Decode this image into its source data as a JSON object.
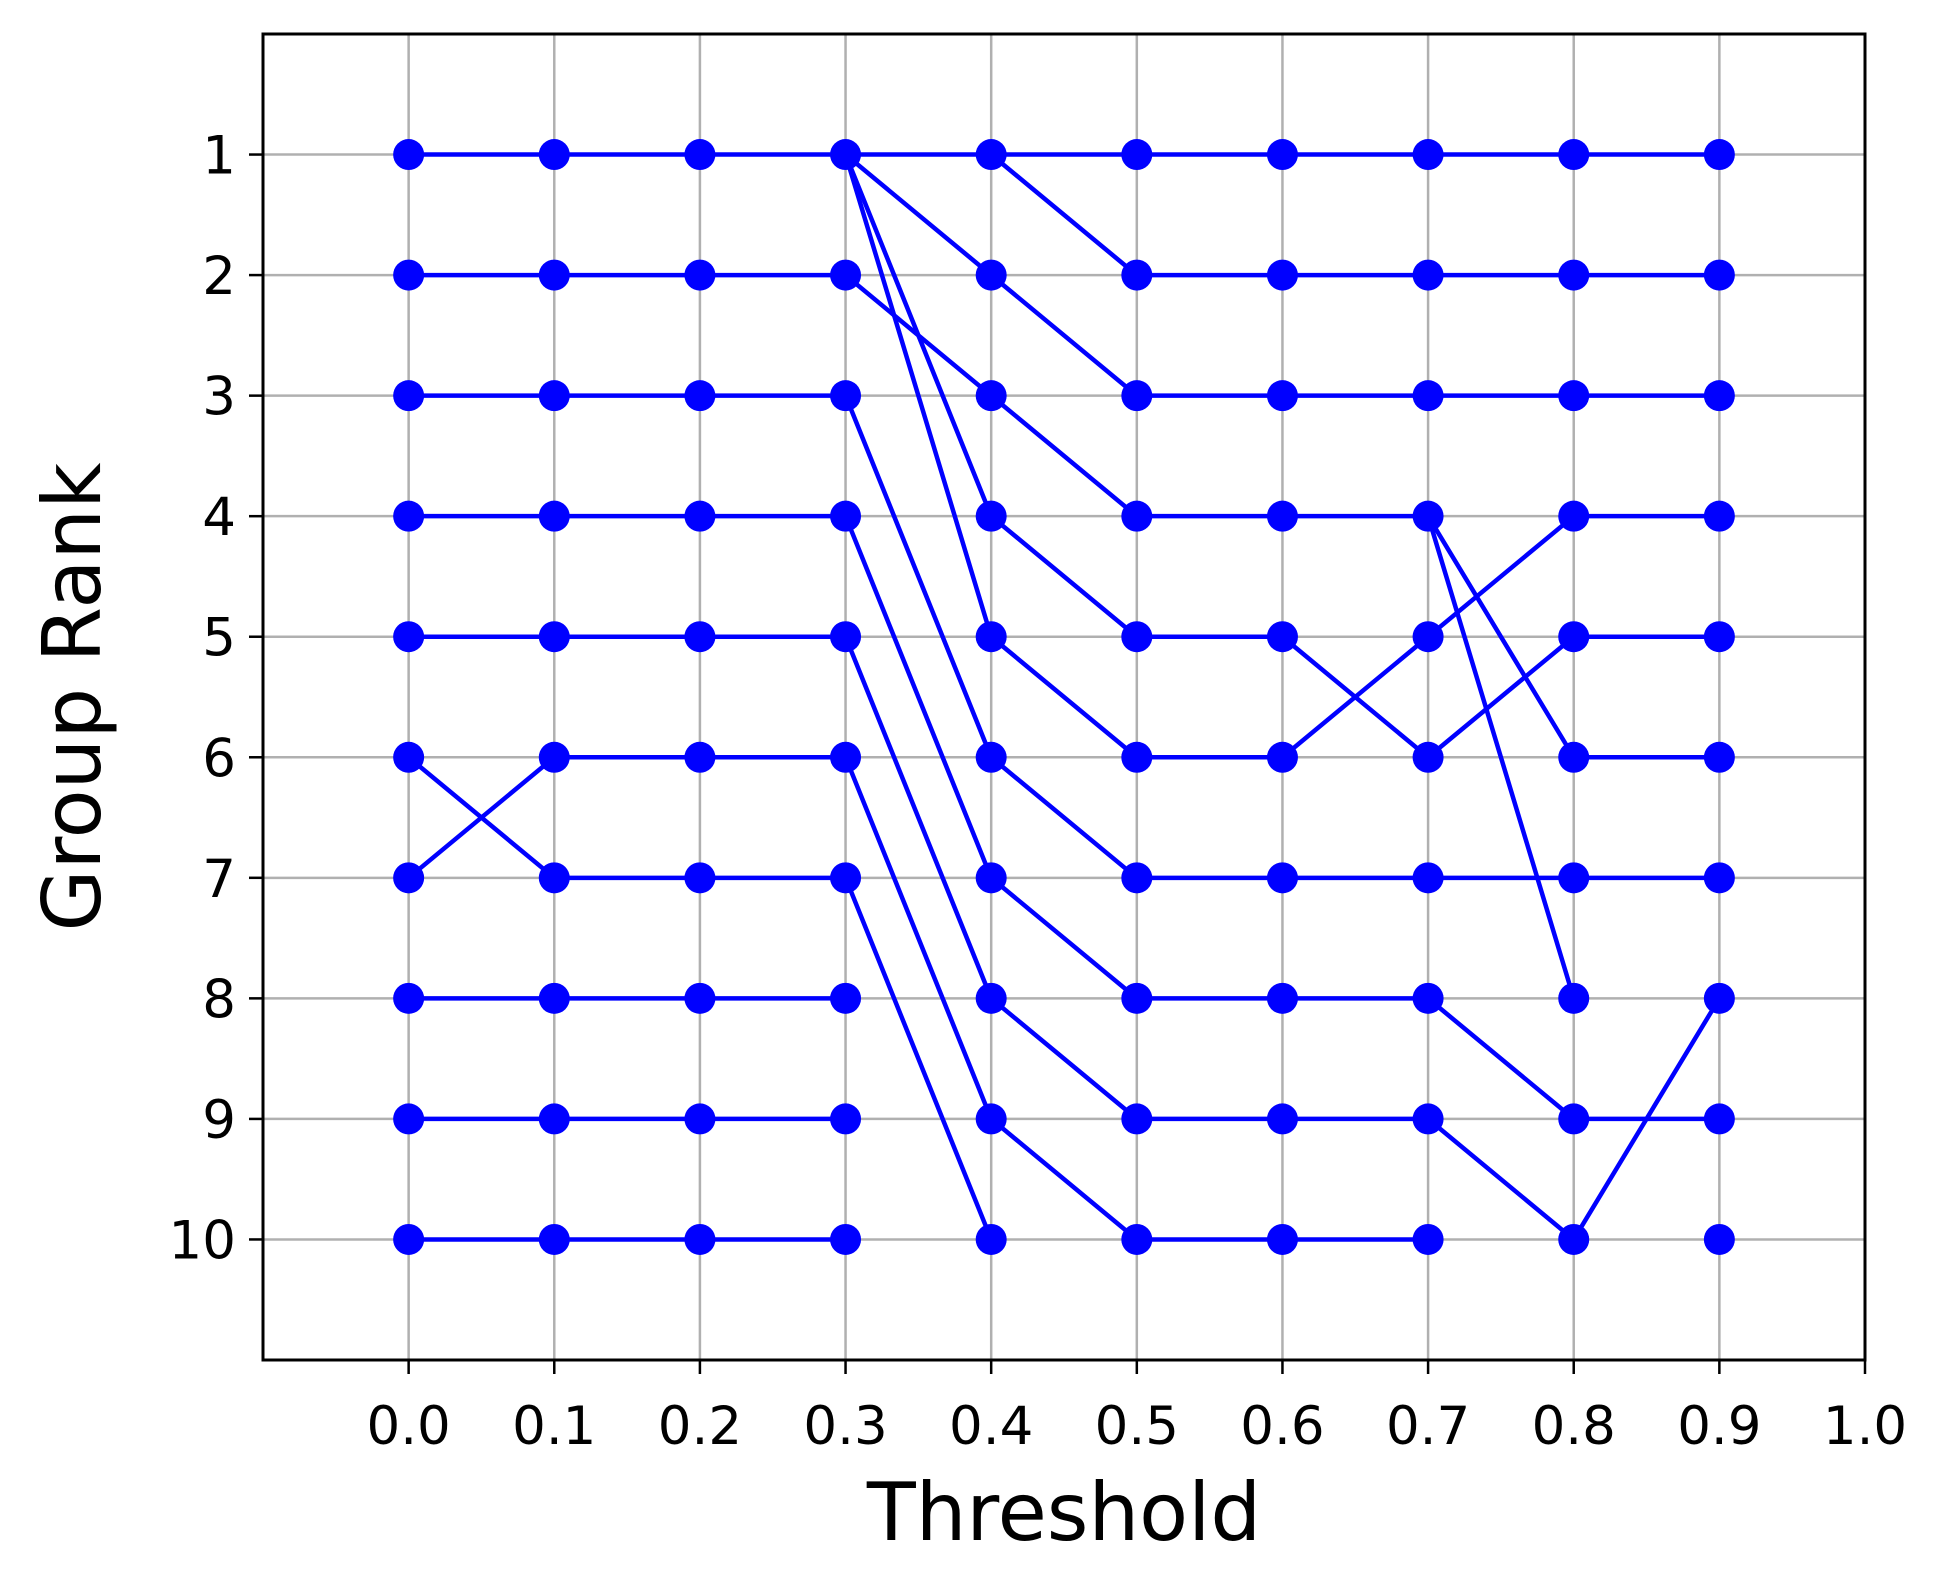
{
  "chart_data": {
    "type": "line",
    "title": "",
    "xlabel": "Threshold",
    "ylabel": "Group Rank",
    "xlim": [
      -0.1,
      1.0
    ],
    "ylim": [
      11,
      0
    ],
    "y_inverted": true,
    "x_ticks": [
      0.0,
      0.1,
      0.2,
      0.3,
      0.4,
      0.5,
      0.6,
      0.7,
      0.8,
      0.9,
      1.0
    ],
    "x_tick_labels": [
      "0.0",
      "0.1",
      "0.2",
      "0.3",
      "0.4",
      "0.5",
      "0.6",
      "0.7",
      "0.8",
      "0.9",
      "1.0"
    ],
    "y_ticks": [
      1,
      2,
      3,
      4,
      5,
      6,
      7,
      8,
      9,
      10
    ],
    "y_tick_labels": [
      "1",
      "2",
      "3",
      "4",
      "5",
      "6",
      "7",
      "8",
      "9",
      "10"
    ],
    "grid": true,
    "legend": "none",
    "color": "#0000ff",
    "grid_color": "#b0b0b0",
    "points": [
      {
        "x": 0.0,
        "ranks": [
          1,
          2,
          3,
          4,
          5,
          6,
          7,
          8,
          9,
          10
        ]
      },
      {
        "x": 0.1,
        "ranks": [
          1,
          2,
          3,
          4,
          5,
          6,
          7,
          8,
          9,
          10
        ]
      },
      {
        "x": 0.2,
        "ranks": [
          1,
          2,
          3,
          4,
          5,
          6,
          7,
          8,
          9,
          10
        ]
      },
      {
        "x": 0.3,
        "ranks": [
          1,
          2,
          3,
          4,
          5,
          6,
          7,
          8,
          9,
          10
        ]
      },
      {
        "x": 0.4,
        "ranks": [
          1,
          2,
          3,
          4,
          5,
          6,
          7,
          8,
          9,
          10
        ]
      },
      {
        "x": 0.5,
        "ranks": [
          1,
          2,
          3,
          4,
          5,
          6,
          7,
          8,
          9,
          10
        ]
      },
      {
        "x": 0.6,
        "ranks": [
          1,
          2,
          3,
          4,
          5,
          6,
          7,
          8,
          9,
          10
        ]
      },
      {
        "x": 0.7,
        "ranks": [
          1,
          2,
          3,
          4,
          5,
          6,
          7,
          8,
          9,
          10
        ]
      },
      {
        "x": 0.8,
        "ranks": [
          1,
          2,
          3,
          4,
          5,
          6,
          7,
          8,
          9,
          10
        ]
      },
      {
        "x": 0.9,
        "ranks": [
          1,
          2,
          3,
          4,
          5,
          6,
          7,
          8,
          9,
          10
        ]
      }
    ],
    "segments": [
      {
        "x": [
          0.0,
          0.1
        ],
        "y": [
          1,
          1
        ]
      },
      {
        "x": [
          0.0,
          0.1
        ],
        "y": [
          2,
          2
        ]
      },
      {
        "x": [
          0.0,
          0.1
        ],
        "y": [
          3,
          3
        ]
      },
      {
        "x": [
          0.0,
          0.1
        ],
        "y": [
          4,
          4
        ]
      },
      {
        "x": [
          0.0,
          0.1
        ],
        "y": [
          5,
          5
        ]
      },
      {
        "x": [
          0.0,
          0.1
        ],
        "y": [
          6,
          7
        ]
      },
      {
        "x": [
          0.0,
          0.1
        ],
        "y": [
          7,
          6
        ]
      },
      {
        "x": [
          0.0,
          0.1
        ],
        "y": [
          8,
          8
        ]
      },
      {
        "x": [
          0.0,
          0.1
        ],
        "y": [
          9,
          9
        ]
      },
      {
        "x": [
          0.0,
          0.1
        ],
        "y": [
          10,
          10
        ]
      },
      {
        "x": [
          0.1,
          0.2
        ],
        "y": [
          1,
          1
        ]
      },
      {
        "x": [
          0.1,
          0.2
        ],
        "y": [
          2,
          2
        ]
      },
      {
        "x": [
          0.1,
          0.2
        ],
        "y": [
          3,
          3
        ]
      },
      {
        "x": [
          0.1,
          0.2
        ],
        "y": [
          4,
          4
        ]
      },
      {
        "x": [
          0.1,
          0.2
        ],
        "y": [
          5,
          5
        ]
      },
      {
        "x": [
          0.1,
          0.2
        ],
        "y": [
          6,
          6
        ]
      },
      {
        "x": [
          0.1,
          0.2
        ],
        "y": [
          7,
          7
        ]
      },
      {
        "x": [
          0.1,
          0.2
        ],
        "y": [
          8,
          8
        ]
      },
      {
        "x": [
          0.1,
          0.2
        ],
        "y": [
          9,
          9
        ]
      },
      {
        "x": [
          0.1,
          0.2
        ],
        "y": [
          10,
          10
        ]
      },
      {
        "x": [
          0.2,
          0.3
        ],
        "y": [
          1,
          1
        ]
      },
      {
        "x": [
          0.2,
          0.3
        ],
        "y": [
          2,
          2
        ]
      },
      {
        "x": [
          0.2,
          0.3
        ],
        "y": [
          3,
          3
        ]
      },
      {
        "x": [
          0.2,
          0.3
        ],
        "y": [
          4,
          4
        ]
      },
      {
        "x": [
          0.2,
          0.3
        ],
        "y": [
          5,
          5
        ]
      },
      {
        "x": [
          0.2,
          0.3
        ],
        "y": [
          6,
          6
        ]
      },
      {
        "x": [
          0.2,
          0.3
        ],
        "y": [
          7,
          7
        ]
      },
      {
        "x": [
          0.2,
          0.3
        ],
        "y": [
          8,
          8
        ]
      },
      {
        "x": [
          0.2,
          0.3
        ],
        "y": [
          9,
          9
        ]
      },
      {
        "x": [
          0.2,
          0.3
        ],
        "y": [
          10,
          10
        ]
      },
      {
        "x": [
          0.3,
          0.4
        ],
        "y": [
          1,
          1
        ]
      },
      {
        "x": [
          0.3,
          0.4
        ],
        "y": [
          1,
          2
        ]
      },
      {
        "x": [
          0.3,
          0.4
        ],
        "y": [
          1,
          4
        ]
      },
      {
        "x": [
          0.3,
          0.4
        ],
        "y": [
          1,
          5
        ]
      },
      {
        "x": [
          0.3,
          0.4
        ],
        "y": [
          2,
          3
        ]
      },
      {
        "x": [
          0.3,
          0.4
        ],
        "y": [
          3,
          6
        ]
      },
      {
        "x": [
          0.3,
          0.4
        ],
        "y": [
          4,
          7
        ]
      },
      {
        "x": [
          0.3,
          0.4
        ],
        "y": [
          5,
          8
        ]
      },
      {
        "x": [
          0.3,
          0.4
        ],
        "y": [
          6,
          9
        ]
      },
      {
        "x": [
          0.3,
          0.4
        ],
        "y": [
          7,
          10
        ]
      },
      {
        "x": [
          0.4,
          0.5
        ],
        "y": [
          1,
          1
        ]
      },
      {
        "x": [
          0.4,
          0.5
        ],
        "y": [
          1,
          2
        ]
      },
      {
        "x": [
          0.4,
          0.5
        ],
        "y": [
          2,
          3
        ]
      },
      {
        "x": [
          0.4,
          0.5
        ],
        "y": [
          3,
          4
        ]
      },
      {
        "x": [
          0.4,
          0.5
        ],
        "y": [
          4,
          5
        ]
      },
      {
        "x": [
          0.4,
          0.5
        ],
        "y": [
          5,
          6
        ]
      },
      {
        "x": [
          0.4,
          0.5
        ],
        "y": [
          6,
          7
        ]
      },
      {
        "x": [
          0.4,
          0.5
        ],
        "y": [
          7,
          8
        ]
      },
      {
        "x": [
          0.4,
          0.5
        ],
        "y": [
          8,
          9
        ]
      },
      {
        "x": [
          0.4,
          0.5
        ],
        "y": [
          9,
          10
        ]
      },
      {
        "x": [
          0.5,
          0.6
        ],
        "y": [
          1,
          1
        ]
      },
      {
        "x": [
          0.5,
          0.6
        ],
        "y": [
          2,
          2
        ]
      },
      {
        "x": [
          0.5,
          0.6
        ],
        "y": [
          3,
          3
        ]
      },
      {
        "x": [
          0.5,
          0.6
        ],
        "y": [
          4,
          4
        ]
      },
      {
        "x": [
          0.5,
          0.6
        ],
        "y": [
          5,
          5
        ]
      },
      {
        "x": [
          0.5,
          0.6
        ],
        "y": [
          6,
          6
        ]
      },
      {
        "x": [
          0.5,
          0.6
        ],
        "y": [
          7,
          7
        ]
      },
      {
        "x": [
          0.5,
          0.6
        ],
        "y": [
          8,
          8
        ]
      },
      {
        "x": [
          0.5,
          0.6
        ],
        "y": [
          9,
          9
        ]
      },
      {
        "x": [
          0.5,
          0.6
        ],
        "y": [
          10,
          10
        ]
      },
      {
        "x": [
          0.6,
          0.7
        ],
        "y": [
          1,
          1
        ]
      },
      {
        "x": [
          0.6,
          0.7
        ],
        "y": [
          2,
          2
        ]
      },
      {
        "x": [
          0.6,
          0.7
        ],
        "y": [
          3,
          3
        ]
      },
      {
        "x": [
          0.6,
          0.7
        ],
        "y": [
          4,
          4
        ]
      },
      {
        "x": [
          0.6,
          0.7
        ],
        "y": [
          5,
          6
        ]
      },
      {
        "x": [
          0.6,
          0.7
        ],
        "y": [
          6,
          5
        ]
      },
      {
        "x": [
          0.6,
          0.7
        ],
        "y": [
          7,
          7
        ]
      },
      {
        "x": [
          0.6,
          0.7
        ],
        "y": [
          8,
          8
        ]
      },
      {
        "x": [
          0.6,
          0.7
        ],
        "y": [
          9,
          9
        ]
      },
      {
        "x": [
          0.6,
          0.7
        ],
        "y": [
          10,
          10
        ]
      },
      {
        "x": [
          0.7,
          0.8
        ],
        "y": [
          1,
          1
        ]
      },
      {
        "x": [
          0.7,
          0.8
        ],
        "y": [
          2,
          2
        ]
      },
      {
        "x": [
          0.7,
          0.8
        ],
        "y": [
          3,
          3
        ]
      },
      {
        "x": [
          0.7,
          0.8
        ],
        "y": [
          4,
          6
        ]
      },
      {
        "x": [
          0.7,
          0.8
        ],
        "y": [
          4,
          8
        ]
      },
      {
        "x": [
          0.7,
          0.8
        ],
        "y": [
          5,
          4
        ]
      },
      {
        "x": [
          0.7,
          0.8
        ],
        "y": [
          6,
          5
        ]
      },
      {
        "x": [
          0.7,
          0.8
        ],
        "y": [
          7,
          7
        ]
      },
      {
        "x": [
          0.7,
          0.8
        ],
        "y": [
          8,
          9
        ]
      },
      {
        "x": [
          0.7,
          0.8
        ],
        "y": [
          9,
          10
        ]
      },
      {
        "x": [
          0.8,
          0.9
        ],
        "y": [
          1,
          1
        ]
      },
      {
        "x": [
          0.8,
          0.9
        ],
        "y": [
          2,
          2
        ]
      },
      {
        "x": [
          0.8,
          0.9
        ],
        "y": [
          3,
          3
        ]
      },
      {
        "x": [
          0.8,
          0.9
        ],
        "y": [
          4,
          4
        ]
      },
      {
        "x": [
          0.8,
          0.9
        ],
        "y": [
          5,
          5
        ]
      },
      {
        "x": [
          0.8,
          0.9
        ],
        "y": [
          6,
          6
        ]
      },
      {
        "x": [
          0.8,
          0.9
        ],
        "y": [
          7,
          7
        ]
      },
      {
        "x": [
          0.8,
          0.9
        ],
        "y": [
          9,
          9
        ]
      },
      {
        "x": [
          0.8,
          0.9
        ],
        "y": [
          10,
          8
        ]
      }
    ]
  }
}
